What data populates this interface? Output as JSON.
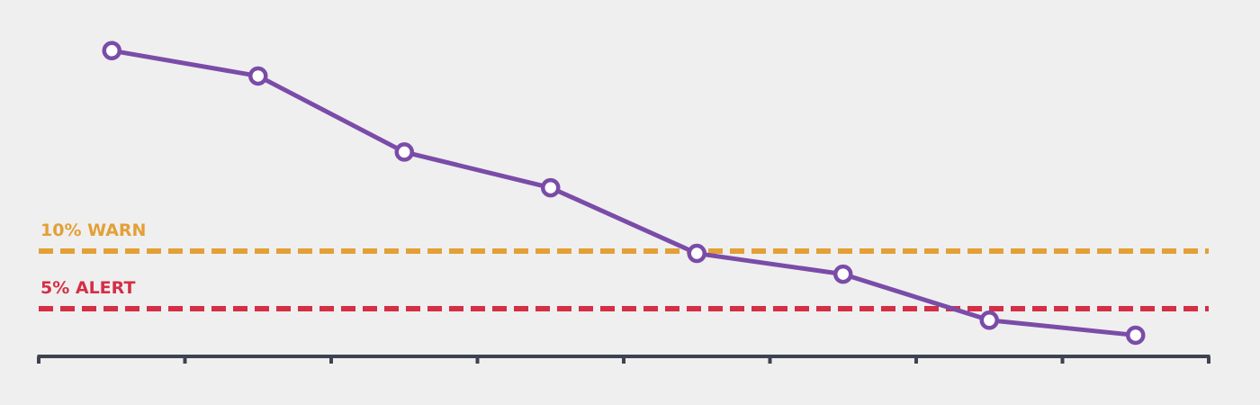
{
  "chart_data": {
    "type": "line",
    "title": "",
    "xlabel": "",
    "ylabel": "",
    "x": [
      1,
      2,
      3,
      4,
      5,
      6,
      7,
      8
    ],
    "ylim": [
      0,
      32
    ],
    "grid": false,
    "series": [
      {
        "values": [
          27.4,
          25.2,
          18.6,
          15.5,
          9.8,
          8.0,
          4.0,
          2.7
        ],
        "color": "#7a4ca8"
      }
    ],
    "thresholds": [
      {
        "label": "10% WARN",
        "value": 10,
        "color": "#e3a037"
      },
      {
        "label": "5% ALERT",
        "value": 5,
        "color": "#d42f45"
      }
    ],
    "axis_color": "#3d4350",
    "background": "#efefef"
  }
}
